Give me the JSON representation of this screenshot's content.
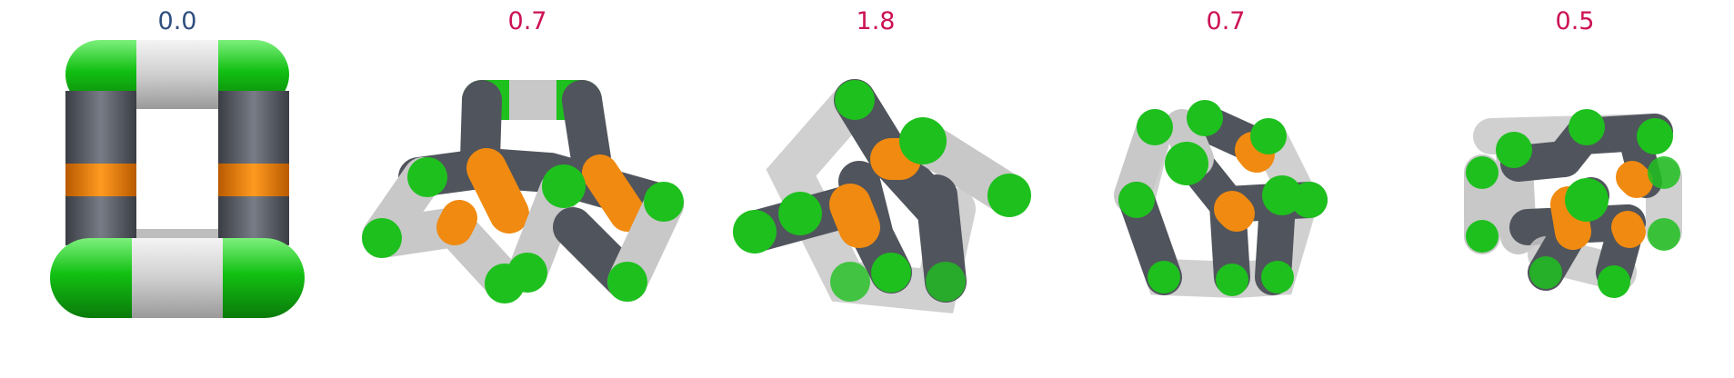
{
  "panels": [
    {
      "label": "0.0",
      "label_color": "#2f4f7f",
      "shape": "square-ring"
    },
    {
      "label": "0.7",
      "label_color": "#cc1155",
      "shape": "pentagon-tangle"
    },
    {
      "label": "1.8",
      "label_color": "#cc1155",
      "shape": "knot-tangle"
    },
    {
      "label": "0.7",
      "label_color": "#cc1155",
      "shape": "cage-tangle"
    },
    {
      "label": "0.5",
      "label_color": "#cc1155",
      "shape": "box-tangle"
    }
  ],
  "colors": {
    "green": "#1ec01e",
    "light_gray": "#c8c8c8",
    "dark_gray": "#50545c",
    "orange": "#f08a10"
  }
}
